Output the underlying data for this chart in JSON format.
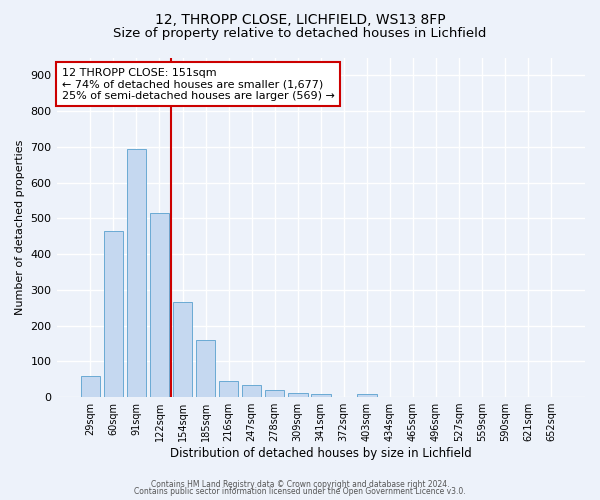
{
  "title1": "12, THROPP CLOSE, LICHFIELD, WS13 8FP",
  "title2": "Size of property relative to detached houses in Lichfield",
  "xlabel": "Distribution of detached houses by size in Lichfield",
  "ylabel": "Number of detached properties",
  "bar_labels": [
    "29sqm",
    "60sqm",
    "91sqm",
    "122sqm",
    "154sqm",
    "185sqm",
    "216sqm",
    "247sqm",
    "278sqm",
    "309sqm",
    "341sqm",
    "372sqm",
    "403sqm",
    "434sqm",
    "465sqm",
    "496sqm",
    "527sqm",
    "559sqm",
    "590sqm",
    "621sqm",
    "652sqm"
  ],
  "bar_values": [
    60,
    465,
    695,
    515,
    265,
    160,
    45,
    35,
    20,
    12,
    10,
    0,
    8,
    0,
    0,
    0,
    0,
    0,
    0,
    0,
    0
  ],
  "bar_color": "#c5d8f0",
  "bar_edgecolor": "#6aaad4",
  "vline_color": "#cc0000",
  "vline_x": 3.5,
  "annotation_text": "12 THROPP CLOSE: 151sqm\n← 74% of detached houses are smaller (1,677)\n25% of semi-detached houses are larger (569) →",
  "annotation_box_color": "#ffffff",
  "annotation_box_edgecolor": "#cc0000",
  "ylim": [
    0,
    950
  ],
  "yticks": [
    0,
    100,
    200,
    300,
    400,
    500,
    600,
    700,
    800,
    900
  ],
  "footer_line1": "Contains HM Land Registry data © Crown copyright and database right 2024.",
  "footer_line2": "Contains public sector information licensed under the Open Government Licence v3.0.",
  "background_color": "#edf2fa",
  "grid_color": "#ffffff",
  "title1_fontsize": 10,
  "title2_fontsize": 9.5
}
